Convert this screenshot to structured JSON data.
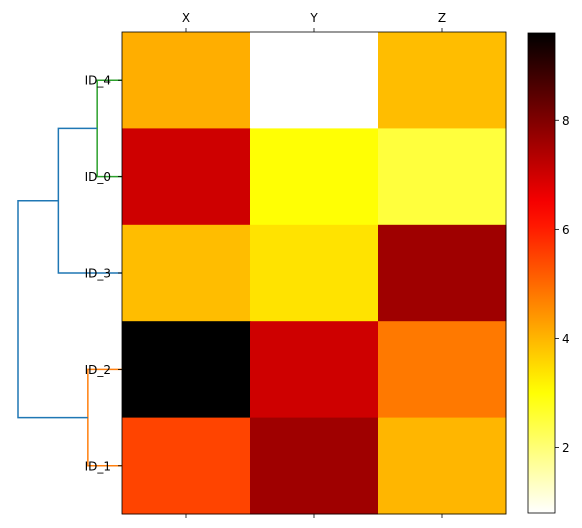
{
  "chart_data": {
    "type": "heatmap",
    "title": "",
    "xlabel": "",
    "ylabel": "",
    "columns": [
      "X",
      "Y",
      "Z"
    ],
    "rows": [
      "ID_4",
      "ID_0",
      "ID_3",
      "ID_2",
      "ID_1"
    ],
    "values": [
      [
        4.1,
        0.8,
        3.9
      ],
      [
        7.0,
        3.0,
        2.5
      ],
      [
        3.9,
        3.4,
        7.6
      ],
      [
        9.6,
        7.0,
        4.8
      ],
      [
        5.5,
        7.6,
        4.0
      ]
    ],
    "colormap": "hot_r",
    "colorbar": {
      "min": 0.8,
      "max": 9.6,
      "ticks": [
        2,
        4,
        6,
        8
      ]
    },
    "dendrogram": {
      "leaf_order": [
        "ID_4",
        "ID_0",
        "ID_3",
        "ID_2",
        "ID_1"
      ],
      "links": [
        {
          "left": "ID_4",
          "right": "ID_0",
          "height": 0.8,
          "color": "#2ca02c"
        },
        {
          "left": "ID_2",
          "right": "ID_1",
          "height": 1.1,
          "color": "#ff7f0e"
        },
        {
          "left": "cluster(ID_4,ID_0)",
          "right": "ID_3",
          "height": 2.05,
          "color": "#1f77b4"
        },
        {
          "left": "cluster(ID_4,ID_0,ID_3)",
          "right": "cluster(ID_2,ID_1)",
          "height": 3.35,
          "color": "#1f77b4"
        }
      ]
    }
  }
}
